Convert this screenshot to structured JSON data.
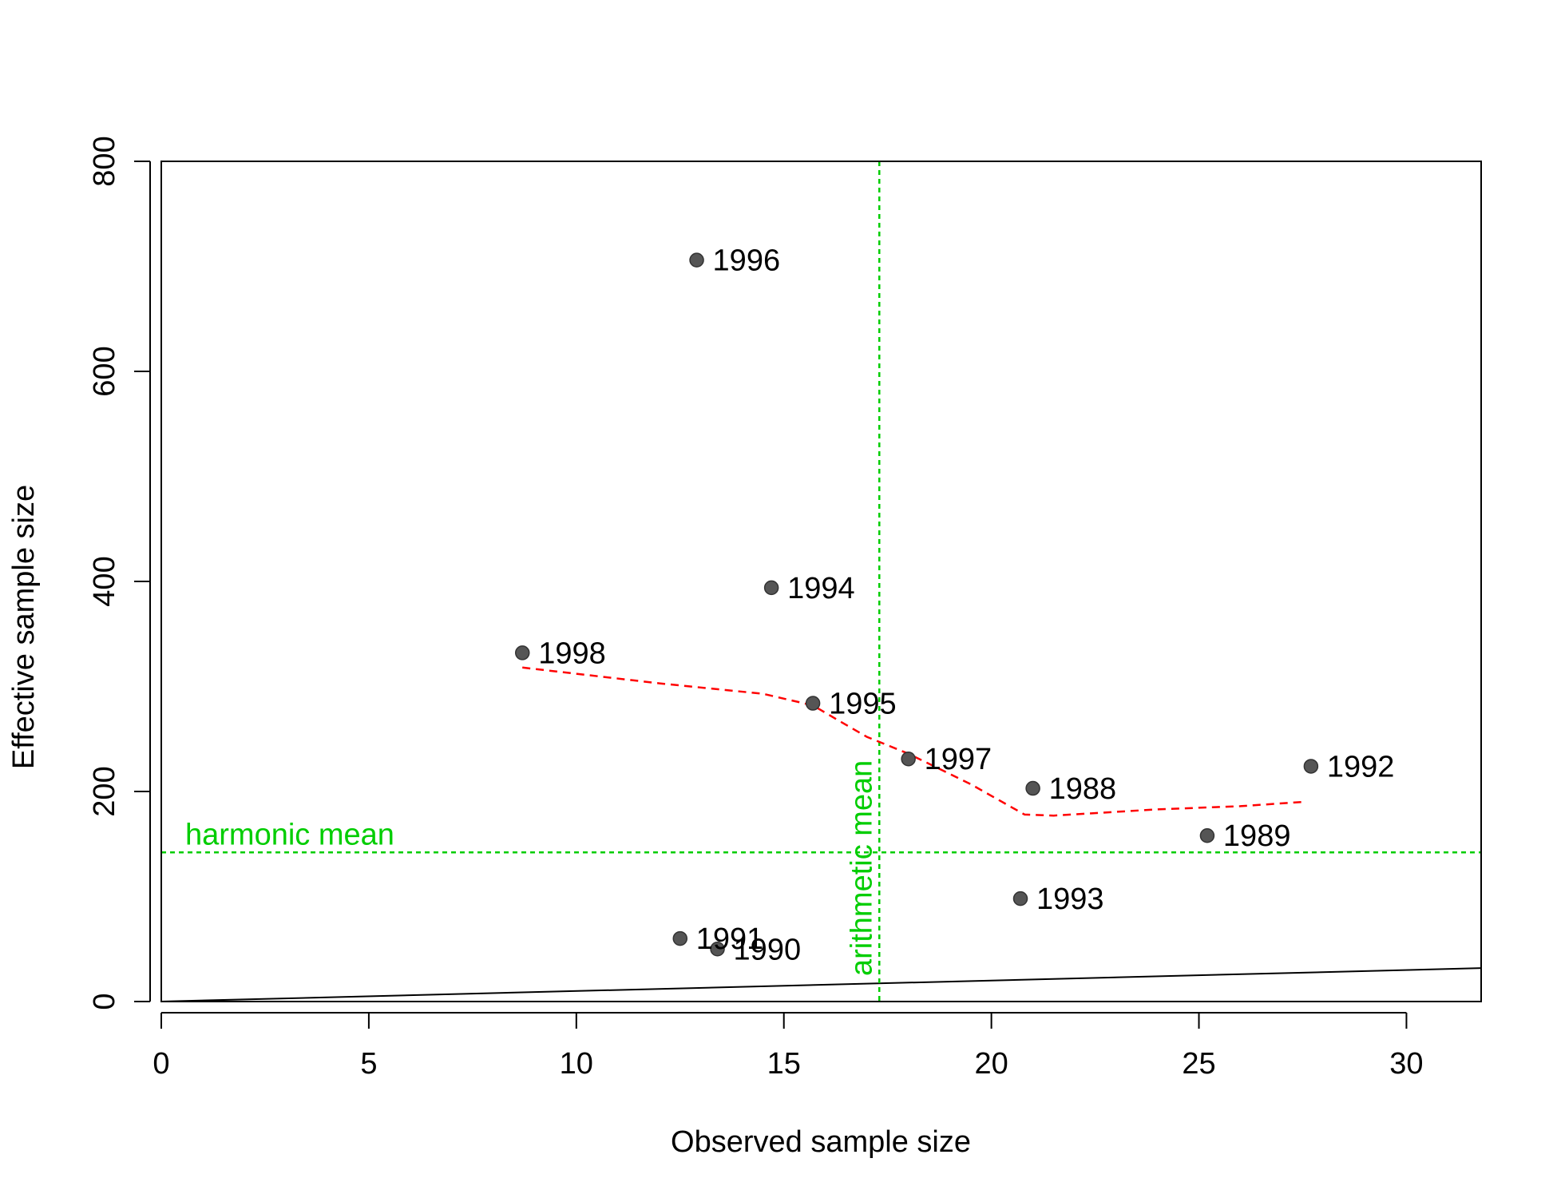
{
  "chart_data": {
    "type": "scatter",
    "xlabel": "Observed sample size",
    "ylabel": "Effective sample size",
    "xlim": [
      0,
      31.8
    ],
    "ylim": [
      0,
      800
    ],
    "x_ticks": [
      0,
      5,
      10,
      15,
      20,
      25,
      30
    ],
    "y_ticks": [
      0,
      200,
      400,
      600,
      800
    ],
    "points": [
      {
        "label": "1988",
        "x": 21.0,
        "y": 203
      },
      {
        "label": "1989",
        "x": 25.2,
        "y": 158
      },
      {
        "label": "1990",
        "x": 13.4,
        "y": 50
      },
      {
        "label": "1991",
        "x": 12.5,
        "y": 60
      },
      {
        "label": "1992",
        "x": 27.7,
        "y": 224
      },
      {
        "label": "1993",
        "x": 20.7,
        "y": 98
      },
      {
        "label": "1994",
        "x": 14.7,
        "y": 394
      },
      {
        "label": "1995",
        "x": 15.7,
        "y": 284
      },
      {
        "label": "1996",
        "x": 12.9,
        "y": 706
      },
      {
        "label": "1997",
        "x": 18.0,
        "y": 231
      },
      {
        "label": "1998",
        "x": 8.7,
        "y": 332
      }
    ],
    "smoother": [
      [
        8.7,
        318
      ],
      [
        12.0,
        303
      ],
      [
        14.5,
        293
      ],
      [
        15.7,
        282
      ],
      [
        16.3,
        268
      ],
      [
        17.0,
        252
      ],
      [
        18.0,
        236
      ],
      [
        19.5,
        207
      ],
      [
        20.8,
        178
      ],
      [
        21.5,
        177
      ],
      [
        24.0,
        183
      ],
      [
        26.0,
        186
      ],
      [
        27.5,
        190
      ]
    ],
    "reference_line": {
      "slope": 1,
      "intercept": 0
    },
    "harmonic_mean": {
      "label": "harmonic mean",
      "value": 142
    },
    "arithmetic_mean": {
      "label": "arithmetic mean",
      "value": 17.3
    },
    "colors": {
      "points": "#555555",
      "smoother": "#ff0000",
      "means": "#00cd00",
      "axes": "#000000"
    }
  }
}
